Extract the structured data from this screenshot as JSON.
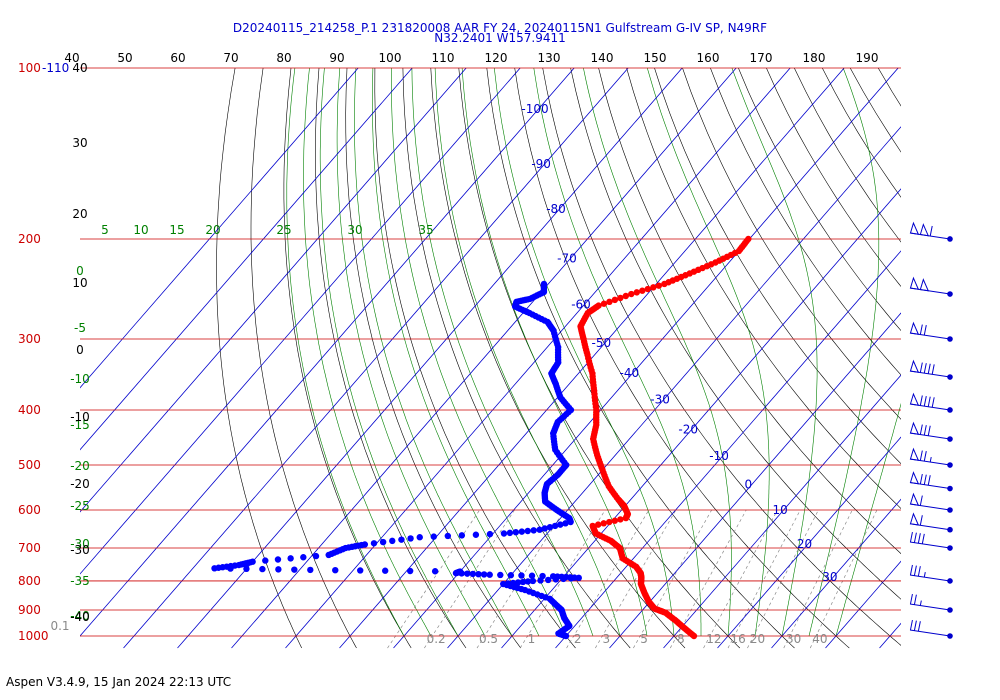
{
  "header": {
    "line1": "D20240115_214258_P.1 231820008 AAR FY 24, 20240115N1 Gulfstream G-IV SP, N49RF",
    "line2": "N32.2401 W157.9411"
  },
  "footer": "Aspen V3.4.9, 15 Jan 2024  22:13 UTC",
  "colors": {
    "temperature": "#ff0000",
    "dewpoint": "#0000ff",
    "isobar": "#cc0000",
    "isotherm": "#0000cc",
    "dry_adiabat": "#000000",
    "moist_adiabat": "#008000",
    "mixing_ratio": "#8a8a8a"
  },
  "chart_data": {
    "type": "skew-t log-p",
    "pressure_labels": [
      "100-110",
      "200",
      "300",
      "400",
      "500",
      "600",
      "700",
      "800",
      "900",
      "1000"
    ],
    "pressure_levels": [
      100,
      200,
      300,
      400,
      500,
      600,
      700,
      800,
      900,
      1000
    ],
    "top_axis_labels": [
      "40",
      "50",
      "60",
      "70",
      "80",
      "90",
      "100",
      "110",
      "120",
      "130",
      "140",
      "150",
      "160",
      "170",
      "180",
      "190"
    ],
    "top_axis_values": [
      40,
      50,
      60,
      70,
      80,
      90,
      100,
      110,
      120,
      130,
      140,
      150,
      160,
      170,
      180,
      190
    ],
    "isotherm_labels": [
      "-100",
      "-90",
      "-80",
      "-70",
      "-60",
      "-50",
      "-40",
      "-30",
      "-20",
      "-10",
      "0",
      "10",
      "20",
      "30"
    ],
    "isotherm_values": [
      -100,
      -90,
      -80,
      -70,
      -60,
      -50,
      -40,
      -30,
      -20,
      -10,
      0,
      10,
      20,
      30
    ],
    "moist_adiabat_labels_top": [
      "5",
      "10",
      "15",
      "20",
      "25",
      "30",
      "35"
    ],
    "moist_adiabat_values_top": [
      5,
      10,
      15,
      20,
      25,
      30,
      35
    ],
    "moist_adiabat_labels_left": [
      "0",
      "-5",
      "-10",
      "-15",
      "-20",
      "-25",
      "-30",
      "-35",
      "-40"
    ],
    "moist_adiabat_values_left": [
      0,
      -5,
      -10,
      -15,
      -20,
      -25,
      -30,
      -35,
      -40
    ],
    "dry_adiabat_labels_left": [
      "40",
      "30",
      "20",
      "10",
      "0",
      "-10",
      "-20",
      "-30",
      "-40"
    ],
    "mixing_ratio_labels": [
      "0.1",
      "0.2",
      "0.5",
      "1",
      "2",
      "3",
      "5",
      "8",
      "12",
      "16",
      "20",
      "30",
      "40"
    ],
    "mixing_ratio_values": [
      0.1,
      0.2,
      0.5,
      1,
      2,
      3,
      5,
      8,
      12,
      16,
      20,
      30,
      40
    ],
    "temperature": {
      "name": "Temperature",
      "points": [
        [
          200,
          -40.2
        ],
        [
          210,
          -40.0
        ],
        [
          220,
          -42.5
        ],
        [
          230,
          -45.5
        ],
        [
          240,
          -48.5
        ],
        [
          250,
          -53.0
        ],
        [
          262,
          -57.2
        ],
        [
          270,
          -58.0
        ],
        [
          285,
          -57.2
        ],
        [
          300,
          -54.6
        ],
        [
          320,
          -51.3
        ],
        [
          345,
          -47.4
        ],
        [
          370,
          -44.3
        ],
        [
          400,
          -40.8
        ],
        [
          425,
          -38.4
        ],
        [
          450,
          -36.7
        ],
        [
          480,
          -33.4
        ],
        [
          510,
          -30.0
        ],
        [
          545,
          -26.2
        ],
        [
          575,
          -22.3
        ],
        [
          590,
          -20.2
        ],
        [
          610,
          -18.2
        ],
        [
          620,
          -17.9
        ],
        [
          640,
          -22.8
        ],
        [
          660,
          -21.0
        ],
        [
          680,
          -17.0
        ],
        [
          700,
          -14.2
        ],
        [
          730,
          -12.0
        ],
        [
          755,
          -8.2
        ],
        [
          775,
          -6.3
        ],
        [
          790,
          -5.4
        ],
        [
          810,
          -4.5
        ],
        [
          840,
          -2.4
        ],
        [
          870,
          -0.2
        ],
        [
          895,
          2.0
        ],
        [
          910,
          4.7
        ],
        [
          940,
          7.9
        ],
        [
          970,
          10.8
        ],
        [
          1000,
          13.7
        ]
      ]
    },
    "dewpoint": {
      "name": "Dewpoint",
      "points": [
        [
          240,
          -70.8
        ],
        [
          248,
          -69.5
        ],
        [
          255,
          -71.0
        ],
        [
          258,
          -73.0
        ],
        [
          263,
          -72.5
        ],
        [
          270,
          -68.8
        ],
        [
          280,
          -64.0
        ],
        [
          290,
          -61.5
        ],
        [
          310,
          -58.0
        ],
        [
          330,
          -55.5
        ],
        [
          345,
          -55.0
        ],
        [
          360,
          -52.5
        ],
        [
          380,
          -49.5
        ],
        [
          400,
          -45.5
        ],
        [
          420,
          -46.0
        ],
        [
          440,
          -45.0
        ],
        [
          470,
          -42.0
        ],
        [
          500,
          -37.5
        ],
        [
          520,
          -37.5
        ],
        [
          540,
          -38.0
        ],
        [
          560,
          -37.0
        ],
        [
          580,
          -35.5
        ],
        [
          600,
          -32.0
        ],
        [
          620,
          -28.4
        ],
        [
          630,
          -27.5
        ],
        [
          650,
          -32.0
        ],
        [
          660,
          -38.0
        ],
        [
          670,
          -53.0
        ],
        [
          690,
          -62.0
        ],
        [
          700,
          -65.0
        ],
        [
          720,
          -67.0
        ],
        [
          740,
          -80.0
        ],
        [
          750,
          -82.0
        ],
        [
          760,
          -86.0
        ],
        [
          765,
          -68.0
        ],
        [
          770,
          -40.0
        ],
        [
          775,
          -40.5
        ],
        [
          780,
          -34.0
        ],
        [
          785,
          -22.0
        ],
        [
          790,
          -17.0
        ],
        [
          800,
          -25.0
        ],
        [
          810,
          -30.0
        ],
        [
          830,
          -25.0
        ],
        [
          860,
          -19.0
        ],
        [
          890,
          -16.0
        ],
        [
          900,
          -15.0
        ],
        [
          930,
          -13.2
        ],
        [
          960,
          -11.0
        ],
        [
          990,
          -11.8
        ],
        [
          1000,
          -10.0
        ]
      ]
    },
    "wind_barbs": [
      {
        "pressure": 200,
        "speed_kt": 110,
        "direction_deg": 260
      },
      {
        "pressure": 250,
        "speed_kt": 100,
        "direction_deg": 270
      },
      {
        "pressure": 300,
        "speed_kt": 70,
        "direction_deg": 270
      },
      {
        "pressure": 350,
        "speed_kt": 90,
        "direction_deg": 270
      },
      {
        "pressure": 400,
        "speed_kt": 90,
        "direction_deg": 270
      },
      {
        "pressure": 450,
        "speed_kt": 80,
        "direction_deg": 270
      },
      {
        "pressure": 500,
        "speed_kt": 75,
        "direction_deg": 270
      },
      {
        "pressure": 550,
        "speed_kt": 80,
        "direction_deg": 265
      },
      {
        "pressure": 600,
        "speed_kt": 60,
        "direction_deg": 270
      },
      {
        "pressure": 650,
        "speed_kt": 60,
        "direction_deg": 265
      },
      {
        "pressure": 700,
        "speed_kt": 40,
        "direction_deg": 270
      },
      {
        "pressure": 800,
        "speed_kt": 35,
        "direction_deg": 250
      },
      {
        "pressure": 900,
        "speed_kt": 25,
        "direction_deg": 270
      },
      {
        "pressure": 1000,
        "speed_kt": 30,
        "direction_deg": 280
      }
    ]
  }
}
